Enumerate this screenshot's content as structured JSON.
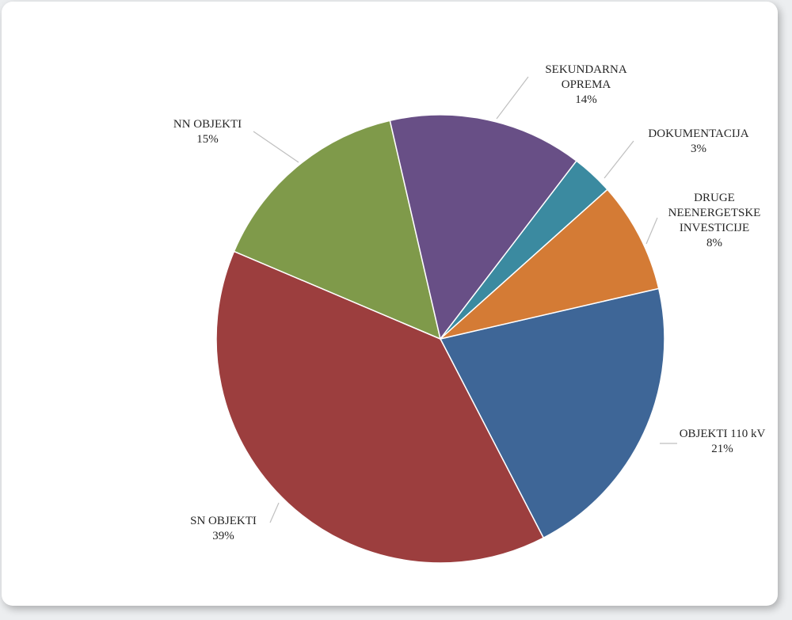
{
  "chart_data": {
    "type": "pie",
    "title": "",
    "slices": [
      {
        "label": "OBJEKTI 110 kV",
        "percent_label": "21%",
        "value": 21,
        "color": "#3e6697"
      },
      {
        "label": "SN OBJEKTI",
        "percent_label": "39%",
        "value": 39,
        "color": "#9c3e3e"
      },
      {
        "label": "NN OBJEKTI",
        "percent_label": "15%",
        "value": 15,
        "color": "#7f9a4a"
      },
      {
        "label": "SEKUNDARNA OPREMA",
        "percent_label": "14%",
        "value": 14,
        "color": "#684f86"
      },
      {
        "label": "DOKUMENTACIJA",
        "percent_label": "3%",
        "value": 3,
        "color": "#3b8aa0"
      },
      {
        "label": "DRUGE NEENERGETSKE INVESTICIJE",
        "percent_label": "8%",
        "value": 8,
        "color": "#d47b35"
      }
    ],
    "legend": "none",
    "data_labels": "outside with leader lines"
  }
}
